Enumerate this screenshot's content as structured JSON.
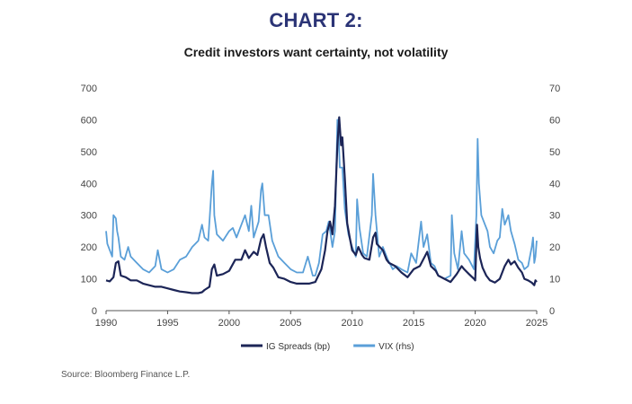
{
  "heading": "CHART 2:",
  "source": "Source: Bloomberg Finance L.P.",
  "colors": {
    "ig": "#1c2557",
    "vix": "#5a9fd8",
    "heading": "#2b3476"
  },
  "chart_data": {
    "type": "line",
    "title": "Credit investors want certainty, not volatility",
    "xlabel": "",
    "ylabel": "",
    "y2label": "",
    "xlim": [
      1990,
      2025
    ],
    "ylim": [
      0,
      700
    ],
    "y2lim": [
      0,
      70
    ],
    "xticks": [
      "1990",
      "1995",
      "2000",
      "2005",
      "2010",
      "2015",
      "2020",
      "2025"
    ],
    "yticks": [
      "0",
      "100",
      "200",
      "300",
      "400",
      "500",
      "600",
      "700"
    ],
    "y2ticks": [
      "0",
      "10",
      "20",
      "30",
      "40",
      "50",
      "60",
      "70"
    ],
    "grid": false,
    "legend": "bottom-center",
    "series": [
      {
        "name": "IG Spreads (bp)",
        "axis": "left",
        "points": [
          [
            1990.0,
            95
          ],
          [
            1990.3,
            92
          ],
          [
            1990.6,
            105
          ],
          [
            1990.8,
            150
          ],
          [
            1991.0,
            155
          ],
          [
            1991.2,
            110
          ],
          [
            1991.6,
            105
          ],
          [
            1992.0,
            95
          ],
          [
            1992.5,
            95
          ],
          [
            1993.0,
            85
          ],
          [
            1993.5,
            80
          ],
          [
            1994.0,
            75
          ],
          [
            1994.5,
            75
          ],
          [
            1995.0,
            70
          ],
          [
            1995.5,
            65
          ],
          [
            1996.0,
            60
          ],
          [
            1996.5,
            58
          ],
          [
            1997.0,
            55
          ],
          [
            1997.5,
            55
          ],
          [
            1997.8,
            58
          ],
          [
            1998.0,
            65
          ],
          [
            1998.4,
            75
          ],
          [
            1998.6,
            130
          ],
          [
            1998.8,
            145
          ],
          [
            1999.0,
            110
          ],
          [
            1999.5,
            115
          ],
          [
            2000.0,
            125
          ],
          [
            2000.5,
            160
          ],
          [
            2001.0,
            160
          ],
          [
            2001.3,
            190
          ],
          [
            2001.6,
            165
          ],
          [
            2002.0,
            185
          ],
          [
            2002.3,
            175
          ],
          [
            2002.6,
            225
          ],
          [
            2002.8,
            240
          ],
          [
            2003.0,
            200
          ],
          [
            2003.3,
            150
          ],
          [
            2003.6,
            135
          ],
          [
            2004.0,
            105
          ],
          [
            2004.5,
            100
          ],
          [
            2005.0,
            90
          ],
          [
            2005.5,
            85
          ],
          [
            2006.0,
            85
          ],
          [
            2006.5,
            85
          ],
          [
            2007.0,
            90
          ],
          [
            2007.5,
            130
          ],
          [
            2007.8,
            190
          ],
          [
            2008.0,
            250
          ],
          [
            2008.2,
            280
          ],
          [
            2008.4,
            240
          ],
          [
            2008.6,
            330
          ],
          [
            2008.8,
            520
          ],
          [
            2008.95,
            608
          ],
          [
            2009.1,
            520
          ],
          [
            2009.2,
            545
          ],
          [
            2009.4,
            420
          ],
          [
            2009.6,
            275
          ],
          [
            2009.8,
            230
          ],
          [
            2010.0,
            190
          ],
          [
            2010.3,
            175
          ],
          [
            2010.5,
            200
          ],
          [
            2010.8,
            175
          ],
          [
            2011.0,
            165
          ],
          [
            2011.4,
            160
          ],
          [
            2011.7,
            230
          ],
          [
            2011.9,
            245
          ],
          [
            2012.0,
            210
          ],
          [
            2012.5,
            190
          ],
          [
            2012.8,
            160
          ],
          [
            2013.0,
            150
          ],
          [
            2013.5,
            140
          ],
          [
            2014.0,
            120
          ],
          [
            2014.5,
            105
          ],
          [
            2015.0,
            130
          ],
          [
            2015.5,
            140
          ],
          [
            2015.9,
            170
          ],
          [
            2016.1,
            185
          ],
          [
            2016.4,
            140
          ],
          [
            2016.8,
            125
          ],
          [
            2017.0,
            110
          ],
          [
            2017.5,
            100
          ],
          [
            2018.0,
            90
          ],
          [
            2018.5,
            115
          ],
          [
            2018.9,
            140
          ],
          [
            2019.1,
            130
          ],
          [
            2019.5,
            115
          ],
          [
            2019.9,
            100
          ],
          [
            2020.0,
            95
          ],
          [
            2020.15,
            270
          ],
          [
            2020.25,
            200
          ],
          [
            2020.4,
            165
          ],
          [
            2020.6,
            135
          ],
          [
            2020.9,
            110
          ],
          [
            2021.2,
            95
          ],
          [
            2021.6,
            88
          ],
          [
            2022.0,
            100
          ],
          [
            2022.4,
            140
          ],
          [
            2022.7,
            160
          ],
          [
            2022.9,
            145
          ],
          [
            2023.2,
            155
          ],
          [
            2023.5,
            135
          ],
          [
            2023.8,
            120
          ],
          [
            2024.0,
            100
          ],
          [
            2024.3,
            95
          ],
          [
            2024.6,
            88
          ],
          [
            2024.8,
            80
          ],
          [
            2024.9,
            95
          ],
          [
            2025.0,
            90
          ]
        ]
      },
      {
        "name": "VIX (rhs)",
        "axis": "right",
        "points": [
          [
            1990.0,
            25
          ],
          [
            1990.1,
            21
          ],
          [
            1990.3,
            19
          ],
          [
            1990.5,
            17
          ],
          [
            1990.6,
            30
          ],
          [
            1990.8,
            29
          ],
          [
            1990.9,
            25
          ],
          [
            1991.0,
            23
          ],
          [
            1991.2,
            17
          ],
          [
            1991.5,
            16
          ],
          [
            1991.8,
            20
          ],
          [
            1992.0,
            17
          ],
          [
            1992.5,
            15
          ],
          [
            1993.0,
            13
          ],
          [
            1993.5,
            12
          ],
          [
            1994.0,
            14
          ],
          [
            1994.2,
            19
          ],
          [
            1994.5,
            13
          ],
          [
            1995.0,
            12
          ],
          [
            1995.5,
            13
          ],
          [
            1996.0,
            16
          ],
          [
            1996.5,
            17
          ],
          [
            1997.0,
            20
          ],
          [
            1997.5,
            22
          ],
          [
            1997.8,
            27
          ],
          [
            1998.0,
            23
          ],
          [
            1998.3,
            22
          ],
          [
            1998.6,
            40
          ],
          [
            1998.7,
            44
          ],
          [
            1998.8,
            30
          ],
          [
            1999.0,
            24
          ],
          [
            1999.5,
            22
          ],
          [
            2000.0,
            25
          ],
          [
            2000.3,
            26
          ],
          [
            2000.6,
            23
          ],
          [
            2001.0,
            27
          ],
          [
            2001.3,
            30
          ],
          [
            2001.6,
            25
          ],
          [
            2001.8,
            33
          ],
          [
            2002.0,
            23
          ],
          [
            2002.4,
            28
          ],
          [
            2002.6,
            38
          ],
          [
            2002.7,
            40
          ],
          [
            2002.9,
            30
          ],
          [
            2003.2,
            30
          ],
          [
            2003.5,
            22
          ],
          [
            2004.0,
            17
          ],
          [
            2004.5,
            15
          ],
          [
            2005.0,
            13
          ],
          [
            2005.5,
            12
          ],
          [
            2006.0,
            12
          ],
          [
            2006.4,
            17
          ],
          [
            2006.8,
            11
          ],
          [
            2007.0,
            11
          ],
          [
            2007.3,
            15
          ],
          [
            2007.6,
            24
          ],
          [
            2007.9,
            25
          ],
          [
            2008.1,
            28
          ],
          [
            2008.4,
            20
          ],
          [
            2008.6,
            25
          ],
          [
            2008.8,
            60
          ],
          [
            2008.9,
            55
          ],
          [
            2009.0,
            45
          ],
          [
            2009.2,
            45
          ],
          [
            2009.4,
            32
          ],
          [
            2009.7,
            24
          ],
          [
            2010.0,
            20
          ],
          [
            2010.3,
            17
          ],
          [
            2010.4,
            35
          ],
          [
            2010.6,
            26
          ],
          [
            2010.9,
            18
          ],
          [
            2011.2,
            17
          ],
          [
            2011.6,
            30
          ],
          [
            2011.7,
            43
          ],
          [
            2011.9,
            30
          ],
          [
            2012.2,
            17
          ],
          [
            2012.5,
            20
          ],
          [
            2012.9,
            16
          ],
          [
            2013.3,
            13
          ],
          [
            2013.6,
            14
          ],
          [
            2014.0,
            13
          ],
          [
            2014.5,
            12
          ],
          [
            2014.8,
            18
          ],
          [
            2015.2,
            15
          ],
          [
            2015.6,
            28
          ],
          [
            2015.8,
            20
          ],
          [
            2016.1,
            24
          ],
          [
            2016.4,
            15
          ],
          [
            2016.7,
            14
          ],
          [
            2017.0,
            11
          ],
          [
            2017.5,
            10
          ],
          [
            2018.0,
            11
          ],
          [
            2018.1,
            30
          ],
          [
            2018.3,
            18
          ],
          [
            2018.6,
            13
          ],
          [
            2018.9,
            25
          ],
          [
            2019.1,
            18
          ],
          [
            2019.5,
            16
          ],
          [
            2019.9,
            13
          ],
          [
            2020.1,
            30
          ],
          [
            2020.2,
            54
          ],
          [
            2020.3,
            40
          ],
          [
            2020.5,
            30
          ],
          [
            2020.8,
            27
          ],
          [
            2021.0,
            25
          ],
          [
            2021.2,
            20
          ],
          [
            2021.5,
            18
          ],
          [
            2021.8,
            22
          ],
          [
            2022.0,
            23
          ],
          [
            2022.2,
            32
          ],
          [
            2022.4,
            27
          ],
          [
            2022.7,
            30
          ],
          [
            2022.9,
            25
          ],
          [
            2023.2,
            21
          ],
          [
            2023.5,
            16
          ],
          [
            2023.8,
            15
          ],
          [
            2024.0,
            13
          ],
          [
            2024.3,
            14
          ],
          [
            2024.6,
            20
          ],
          [
            2024.7,
            23
          ],
          [
            2024.8,
            15
          ],
          [
            2024.9,
            17
          ],
          [
            2025.0,
            22
          ]
        ]
      }
    ]
  }
}
